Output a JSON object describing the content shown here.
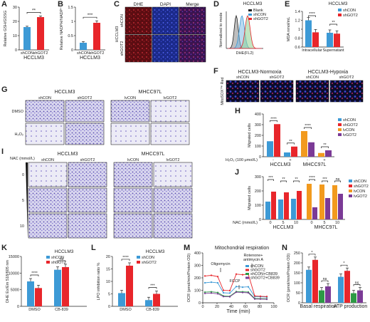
{
  "panels": {
    "A": {
      "letter": "A"
    },
    "B": {
      "letter": "B"
    },
    "C": {
      "letter": "C"
    },
    "D": {
      "letter": "D"
    },
    "E": {
      "letter": "E"
    },
    "F": {
      "letter": "F"
    },
    "G": {
      "letter": "G"
    },
    "H": {
      "letter": "H"
    },
    "I": {
      "letter": "I"
    },
    "J": {
      "letter": "J"
    },
    "K": {
      "letter": "K"
    },
    "L": {
      "letter": "L"
    },
    "M": {
      "letter": "M"
    },
    "N": {
      "letter": "N"
    }
  },
  "colors": {
    "shCON": "#3d9ad6",
    "shGOT2": "#e8262b",
    "lvCON": "#f29a1e",
    "lvGOT2": "#7b3a96",
    "oligo": "#2d9a45",
    "micro_blue": "#3b45c6",
    "micro_red": "#a8242c",
    "micro_pink": "#c23a7a",
    "transwell": "#6a5bbf"
  },
  "images": {
    "C": {
      "col_labels": [
        "DHE",
        "DAPI",
        "Merge"
      ],
      "row_labels": [
        "shCON",
        "shGOT2"
      ],
      "side_label": "HCCLM3"
    },
    "F": {
      "group_labels": [
        "HCCLM3-Normoxia",
        "HCCLM3-Hypoxia"
      ],
      "col_labels": [
        "shCON",
        "shGOT2",
        "shCON",
        "shGOT2"
      ],
      "side_label": "MitoSOX™ Red"
    },
    "G": {
      "group_labels": [
        "HCCLM3",
        "MHCC97L"
      ],
      "col_labels": [
        "shCON",
        "shGOT2",
        "lvCON",
        "lvGOT2"
      ],
      "row_labels": [
        "DMSO",
        "H₂O₂"
      ]
    },
    "I": {
      "group_labels": [
        "HCCLM3",
        "MHCC97L"
      ],
      "col_labels": [
        "shCON",
        "shGOT2",
        "lvCON",
        "lvGOT2"
      ],
      "row_labels": [
        "0",
        "5",
        "10"
      ],
      "side_label": "NAC (mmol/L)"
    }
  },
  "chart_data": [
    {
      "panel": "A",
      "type": "bar",
      "ylabel": "Relative GSH/GSSG",
      "xlabel": "HCCLM3",
      "categories": [
        "shCON",
        "shGOT2"
      ],
      "values": [
        16,
        23
      ],
      "errors": [
        0.6,
        0.8
      ],
      "ylim": [
        0,
        30
      ],
      "yticks": [
        0,
        10,
        20,
        30
      ],
      "significance": [
        "**"
      ]
    },
    {
      "panel": "B",
      "type": "bar",
      "ylabel": "Relative NADPH/NADP⁺",
      "xlabel": "HCCLM3",
      "categories": [
        "shCON",
        "shGOT2"
      ],
      "values": [
        0.25,
        0.95
      ],
      "errors": [
        0.04,
        0.07
      ],
      "ylim": [
        0,
        1.5
      ],
      "yticks": [
        0.0,
        0.5,
        1.0,
        1.5
      ],
      "significance": [
        "***"
      ]
    },
    {
      "panel": "D",
      "type": "histogram",
      "title": "HCCLM3",
      "xlabel": "DHE(FL2)",
      "ylabel": "Normalized to mode",
      "legend": [
        "Blank",
        "shCON",
        "shGOT2"
      ],
      "legend_colors": [
        "#222222",
        "#3d9ad6",
        "#e8262b"
      ]
    },
    {
      "panel": "E",
      "type": "bar",
      "title": "HCCLM3",
      "ylabel": "MDA nmol/mL",
      "categories": [
        "Intracellular",
        "Supernatant"
      ],
      "series": [
        {
          "name": "shCON",
          "values": [
            1.2,
            0.92
          ]
        },
        {
          "name": "shGOT2",
          "values": [
            0.93,
            0.9
          ]
        }
      ],
      "errors": [
        0.03,
        0.03
      ],
      "ylim": [
        0.6,
        1.4
      ],
      "yticks": [
        0.6,
        0.8,
        1.0,
        1.2,
        1.4
      ],
      "significance": [
        "****",
        "**"
      ]
    },
    {
      "panel": "H",
      "type": "bar",
      "ylabel": "Migrated cells",
      "xlabel": "H₂O₂ (100 μmol/L)",
      "groups": [
        "HCCLM3",
        "MHCC97L"
      ],
      "treatment": [
        "-",
        "+",
        "-",
        "+"
      ],
      "legend": [
        "shCON",
        "shGOT2",
        "lvCON",
        "lvGOT2"
      ],
      "values": [
        [
          145,
          305
        ],
        [
          40,
          95
        ],
        [
          240,
          135
        ],
        [
          35,
          60
        ]
      ],
      "ylim": [
        0,
        400
      ],
      "yticks": [
        0,
        100,
        200,
        300,
        400
      ],
      "significance": [
        "****",
        "**",
        "****",
        "**"
      ]
    },
    {
      "panel": "J",
      "type": "bar",
      "ylabel": "Migrated cells",
      "xlabel": "NAC (mmol/L)",
      "groups": [
        "HCCLM3",
        "MHCC97L"
      ],
      "x": [
        "0",
        "5",
        "10",
        "0",
        "5",
        "10"
      ],
      "legend": [
        "shCON",
        "shGOT2",
        "lvCON",
        "lvGOT2"
      ],
      "values": [
        [
          125,
          195
        ],
        [
          140,
          190
        ],
        [
          145,
          200
        ],
        [
          250,
          85
        ],
        [
          245,
          150
        ],
        [
          240,
          180
        ]
      ],
      "ylim": [
        0,
        300
      ],
      "yticks": [
        0,
        100,
        200,
        300
      ],
      "significance": [
        "***",
        "**",
        "**",
        "****",
        "***",
        "ns"
      ]
    },
    {
      "panel": "K",
      "type": "bar",
      "title": "HCCLM3",
      "ylabel": "DHE Ex/Em 518/605 nm",
      "categories": [
        "DMSO",
        "CB-839"
      ],
      "series": [
        {
          "name": "shCON",
          "values": [
            7500,
            11000
          ]
        },
        {
          "name": "shGOT2",
          "values": [
            5500,
            11800
          ]
        }
      ],
      "ylim": [
        0,
        15000
      ],
      "yticks": [
        0,
        5000,
        10000,
        15000
      ],
      "significance": [
        "****",
        "ns"
      ]
    },
    {
      "panel": "L",
      "type": "bar",
      "title": "HCCLM3",
      "ylabel": "LPO inhibition ratio %",
      "categories": [
        "DMSO",
        "CB-839"
      ],
      "series": [
        {
          "name": "shCON",
          "values": [
            5.3,
            2.5
          ]
        },
        {
          "name": "shGOT2",
          "values": [
            16.3,
            5.0
          ]
        }
      ],
      "ylim": [
        0,
        20
      ],
      "yticks": [
        0,
        5,
        10,
        15,
        20
      ],
      "significance": [
        "****",
        "***"
      ]
    },
    {
      "panel": "M",
      "type": "line",
      "title": "Mitochondrial respiration",
      "xlabel": "Time (min)",
      "ylabel": "OCR (pmol/min/Protein OD)",
      "xlim": [
        0,
        100
      ],
      "xticks": [
        0,
        20,
        40,
        60,
        80,
        100
      ],
      "ylim": [
        0,
        400
      ],
      "yticks": [
        0,
        100,
        200,
        300,
        400
      ],
      "annotations": [
        "Oligomycin",
        "FCCP",
        "Rotenone+ antimycin A"
      ],
      "x": [
        3,
        12,
        21,
        29,
        38,
        47,
        56,
        64,
        73,
        81,
        90
      ],
      "series": [
        {
          "name": "shCON",
          "values": [
            160,
            165,
            160,
            80,
            78,
            130,
            125,
            128,
            50,
            48,
            45
          ]
        },
        {
          "name": "shGOT2",
          "values": [
            215,
            220,
            210,
            100,
            98,
            230,
            225,
            228,
            55,
            52,
            50
          ]
        },
        {
          "name": "shCON+CB839",
          "values": [
            85,
            88,
            82,
            55,
            52,
            90,
            88,
            86,
            35,
            33,
            32
          ]
        },
        {
          "name": "shGOT2+CB839",
          "values": [
            75,
            78,
            72,
            50,
            48,
            85,
            82,
            80,
            30,
            30,
            28
          ]
        }
      ]
    },
    {
      "panel": "N",
      "type": "bar",
      "ylabel": "OCR (pmol/min/Protein OD)",
      "categories": [
        "Basal respiration",
        "ATP production"
      ],
      "series": [
        {
          "name": "shCON",
          "values": [
            165,
            130
          ]
        },
        {
          "name": "shGOT2",
          "values": [
            215,
            160
          ]
        },
        {
          "name": "shCON+CB839",
          "values": [
            62,
            48
          ]
        },
        {
          "name": "shGOT2+CB839",
          "values": [
            82,
            62
          ]
        }
      ],
      "ylim": [
        0,
        250
      ],
      "yticks": [
        0,
        50,
        100,
        150,
        200,
        250
      ],
      "significance": [
        "*",
        "ns",
        "*",
        "ns"
      ]
    }
  ]
}
